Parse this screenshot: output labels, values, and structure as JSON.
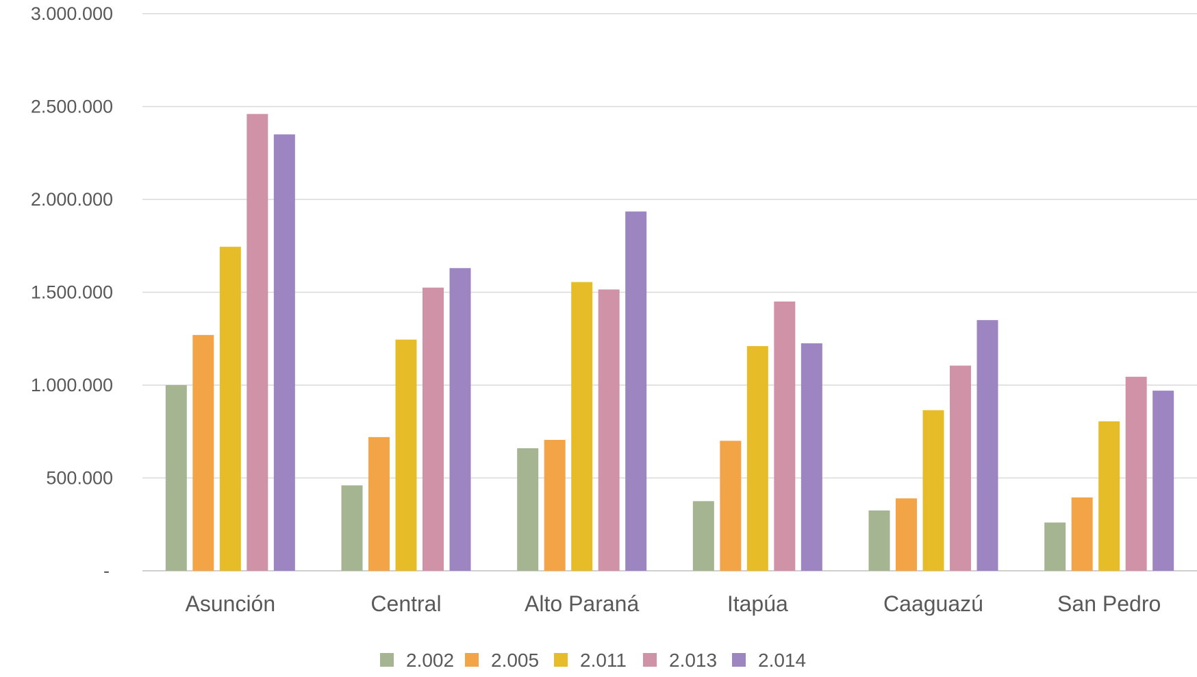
{
  "chart_data": {
    "type": "bar",
    "title": "",
    "xlabel": "",
    "ylabel": "",
    "categories": [
      "Asunción",
      "Central",
      "Alto Paraná",
      "Itapúa",
      "Caaguazú",
      "San Pedro"
    ],
    "ylim": [
      0,
      3000000
    ],
    "yticks": [
      0,
      500000,
      1000000,
      1500000,
      2000000,
      2500000,
      3000000
    ],
    "ytick_labels": [
      "-",
      "500.000",
      "1.000.000",
      "1.500.000",
      "2.000.000",
      "2.500.000",
      "3.000.000"
    ],
    "grid": true,
    "legend_position": "bottom",
    "series": [
      {
        "name": "2.002",
        "color": "#a5b592",
        "values": [
          1000000,
          460000,
          660000,
          375000,
          325000,
          260000
        ]
      },
      {
        "name": "2.005",
        "color": "#f3a447",
        "values": [
          1270000,
          720000,
          705000,
          700000,
          390000,
          395000
        ]
      },
      {
        "name": "2.011",
        "color": "#e7bc29",
        "values": [
          1745000,
          1245000,
          1555000,
          1210000,
          865000,
          805000
        ]
      },
      {
        "name": "2.013",
        "color": "#d092a7",
        "values": [
          2460000,
          1525000,
          1515000,
          1450000,
          1105000,
          1045000
        ]
      },
      {
        "name": "2.014",
        "color": "#9c85c0",
        "values": [
          2350000,
          1630000,
          1935000,
          1225000,
          1350000,
          970000
        ]
      }
    ]
  }
}
